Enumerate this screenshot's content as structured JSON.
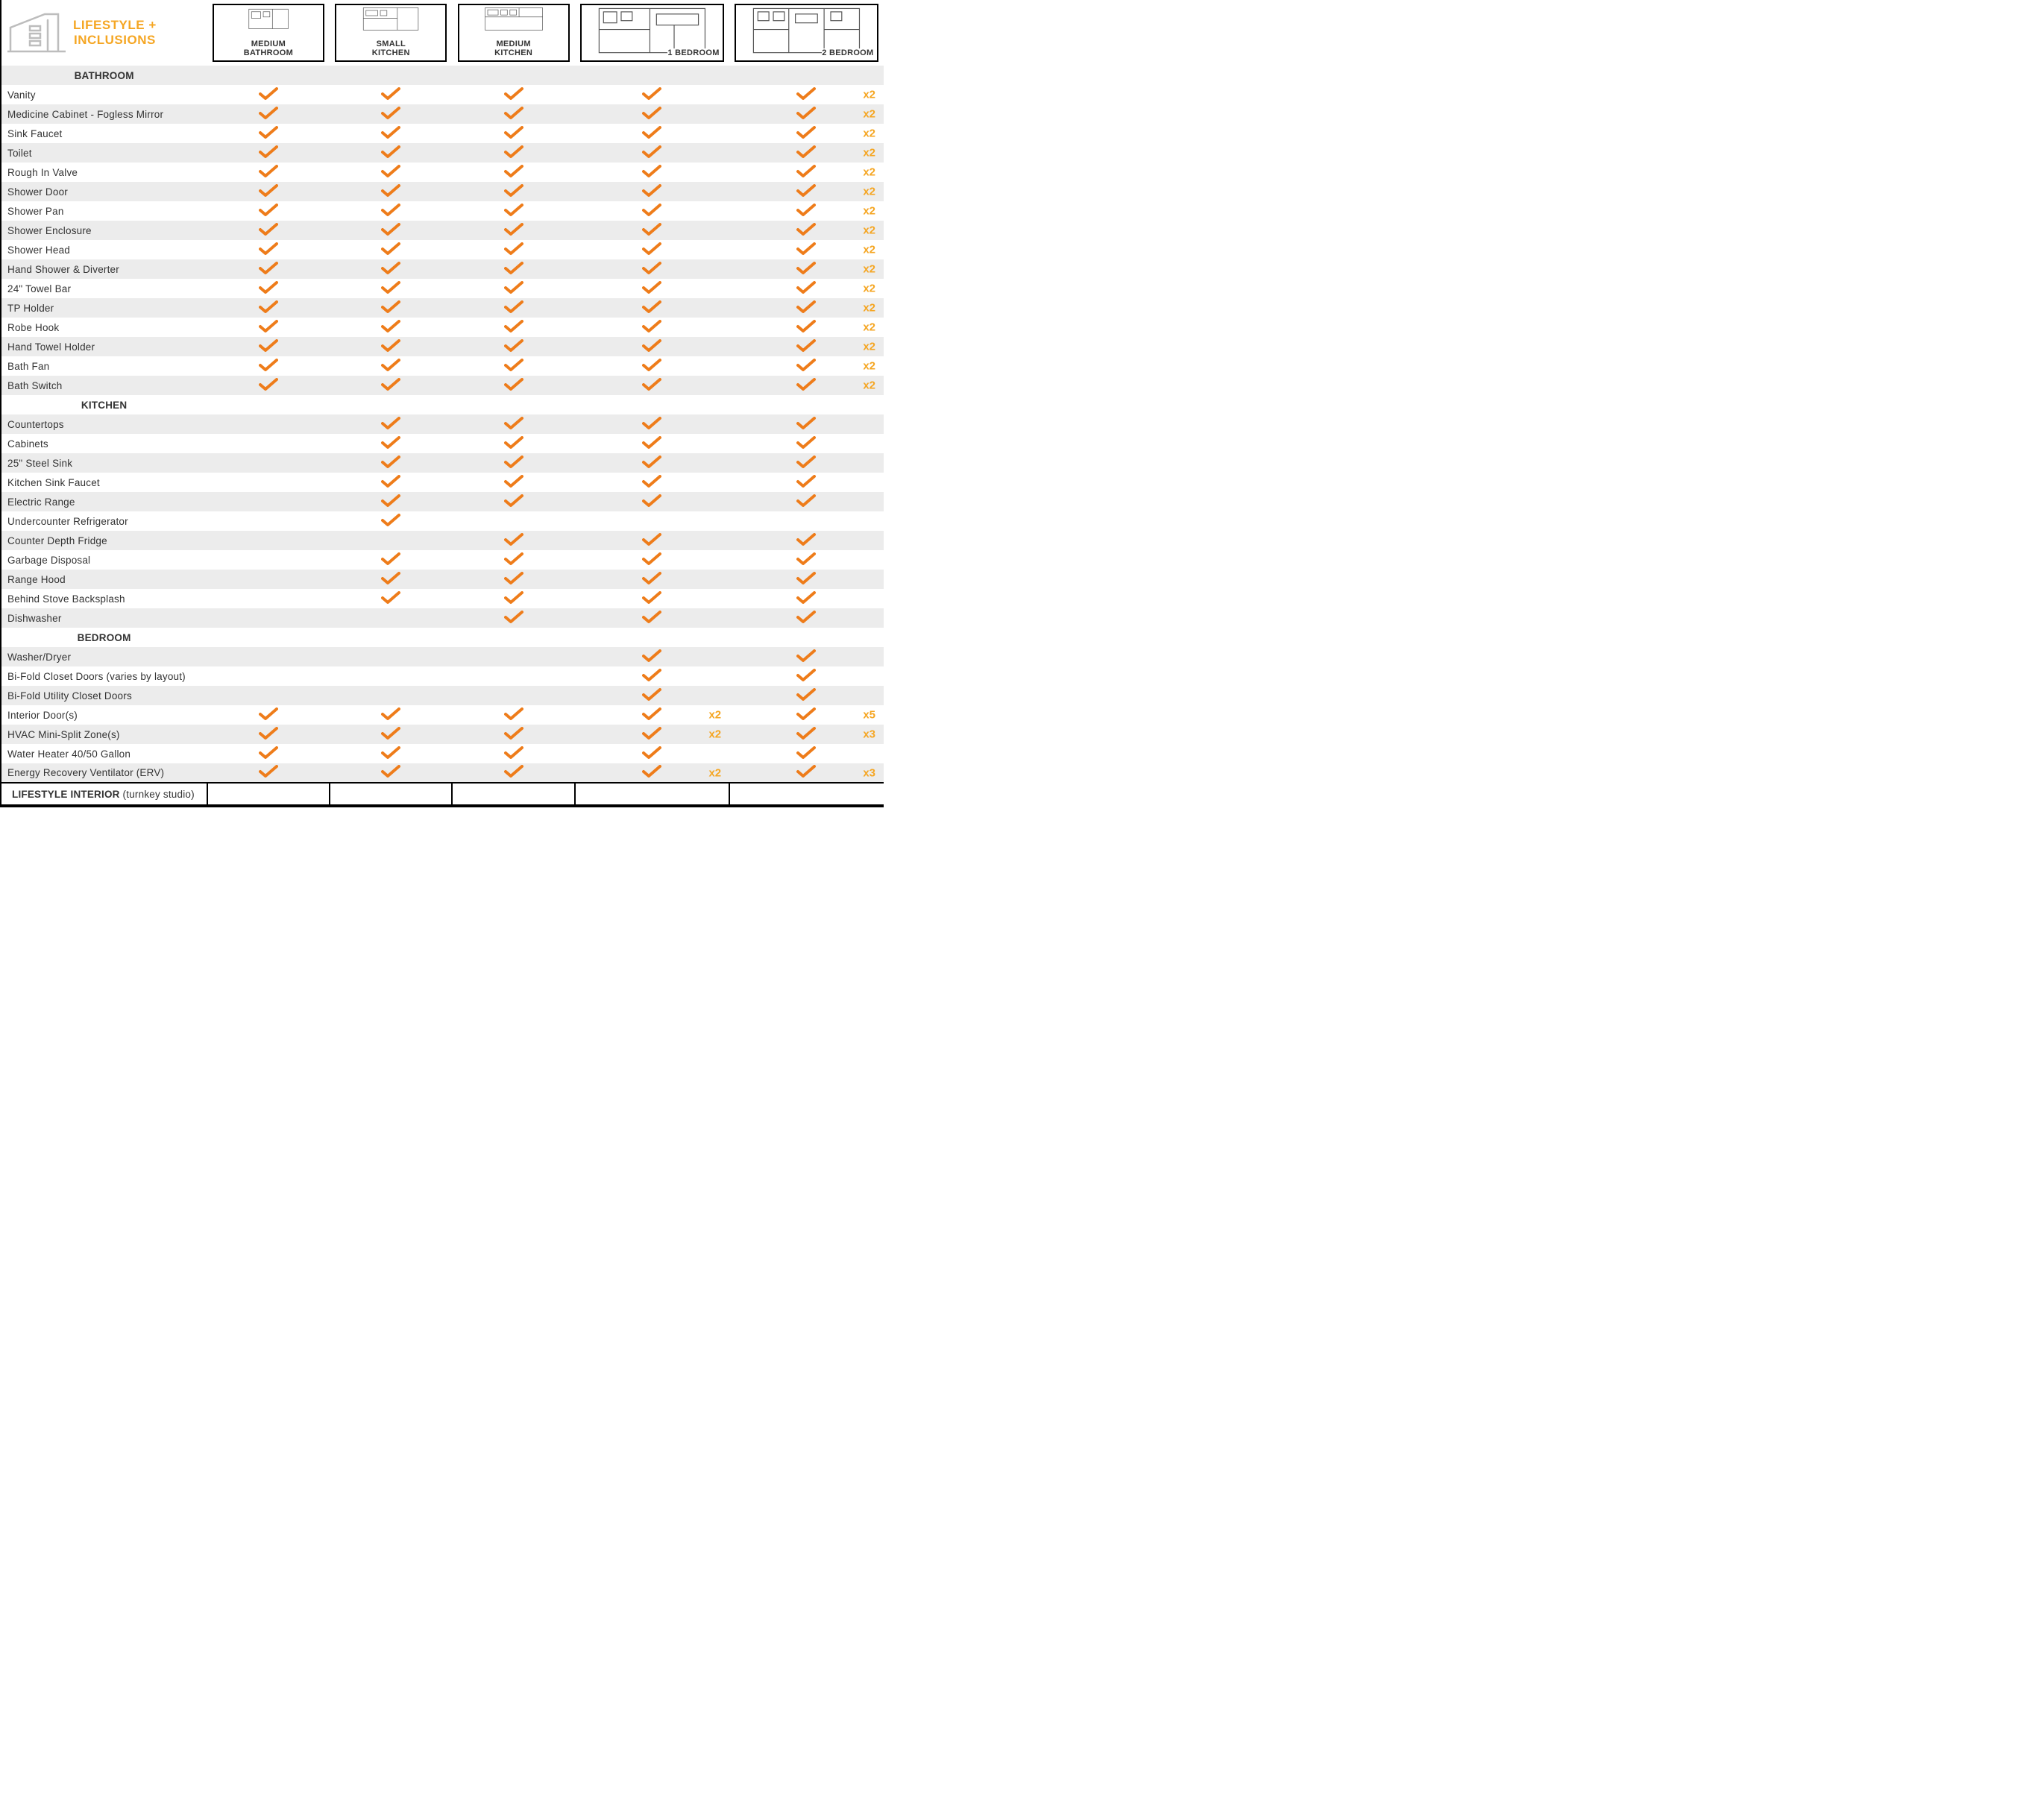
{
  "colors": {
    "accent": "#ee7c1a",
    "brand": "#f5a623",
    "zebra": "#ececec",
    "border": "#000000",
    "text": "#333333"
  },
  "brand": {
    "line1": "LIFESTYLE +",
    "line2": "INCLUSIONS"
  },
  "columns": [
    {
      "id": "medium_bathroom",
      "label_l1": "MEDIUM",
      "label_l2": "BATHROOM",
      "wide": false
    },
    {
      "id": "small_kitchen",
      "label_l1": "SMALL",
      "label_l2": "KITCHEN",
      "wide": false
    },
    {
      "id": "medium_kitchen",
      "label_l1": "MEDIUM",
      "label_l2": "KITCHEN",
      "wide": false
    },
    {
      "id": "one_bedroom",
      "label_l1": "",
      "label_l2": "1 BEDROOM",
      "wide": true
    },
    {
      "id": "two_bedroom",
      "label_l1": "",
      "label_l2": "2 BEDROOM",
      "wide": true
    }
  ],
  "sections": [
    {
      "title": "BATHROOM",
      "rows": [
        {
          "label": "Vanity",
          "cells": [
            "c",
            "c",
            "c",
            "c",
            {
              "c": true,
              "q": "x2"
            }
          ]
        },
        {
          "label": "Medicine Cabinet - Fogless Mirror",
          "cells": [
            "c",
            "c",
            "c",
            "c",
            {
              "c": true,
              "q": "x2"
            }
          ]
        },
        {
          "label": "Sink Faucet",
          "cells": [
            "c",
            "c",
            "c",
            "c",
            {
              "c": true,
              "q": "x2"
            }
          ]
        },
        {
          "label": "Toilet",
          "cells": [
            "c",
            "c",
            "c",
            "c",
            {
              "c": true,
              "q": "x2"
            }
          ]
        },
        {
          "label": "Rough In Valve",
          "cells": [
            "c",
            "c",
            "c",
            "c",
            {
              "c": true,
              "q": "x2"
            }
          ]
        },
        {
          "label": "Shower Door",
          "cells": [
            "c",
            "c",
            "c",
            "c",
            {
              "c": true,
              "q": "x2"
            }
          ]
        },
        {
          "label": "Shower Pan",
          "cells": [
            "c",
            "c",
            "c",
            "c",
            {
              "c": true,
              "q": "x2"
            }
          ]
        },
        {
          "label": "Shower Enclosure",
          "cells": [
            "c",
            "c",
            "c",
            "c",
            {
              "c": true,
              "q": "x2"
            }
          ]
        },
        {
          "label": "Shower Head",
          "cells": [
            "c",
            "c",
            "c",
            "c",
            {
              "c": true,
              "q": "x2"
            }
          ]
        },
        {
          "label": "Hand Shower & Diverter",
          "cells": [
            "c",
            "c",
            "c",
            "c",
            {
              "c": true,
              "q": "x2"
            }
          ]
        },
        {
          "label": "24\" Towel Bar",
          "cells": [
            "c",
            "c",
            "c",
            "c",
            {
              "c": true,
              "q": "x2"
            }
          ]
        },
        {
          "label": "TP Holder",
          "cells": [
            "c",
            "c",
            "c",
            "c",
            {
              "c": true,
              "q": "x2"
            }
          ]
        },
        {
          "label": "Robe Hook",
          "cells": [
            "c",
            "c",
            "c",
            "c",
            {
              "c": true,
              "q": "x2"
            }
          ]
        },
        {
          "label": "Hand Towel Holder",
          "cells": [
            "c",
            "c",
            "c",
            "c",
            {
              "c": true,
              "q": "x2"
            }
          ]
        },
        {
          "label": "Bath Fan",
          "cells": [
            "c",
            "c",
            "c",
            "c",
            {
              "c": true,
              "q": "x2"
            }
          ]
        },
        {
          "label": "Bath Switch",
          "cells": [
            "c",
            "c",
            "c",
            "c",
            {
              "c": true,
              "q": "x2"
            }
          ]
        }
      ]
    },
    {
      "title": "KITCHEN",
      "rows": [
        {
          "label": "Countertops",
          "cells": [
            "",
            "c",
            "c",
            "c",
            "c"
          ]
        },
        {
          "label": "Cabinets",
          "cells": [
            "",
            "c",
            "c",
            "c",
            "c"
          ]
        },
        {
          "label": "25\" Steel Sink",
          "cells": [
            "",
            "c",
            "c",
            "c",
            "c"
          ]
        },
        {
          "label": "Kitchen Sink Faucet",
          "cells": [
            "",
            "c",
            "c",
            "c",
            "c"
          ]
        },
        {
          "label": "Electric Range",
          "cells": [
            "",
            "c",
            "c",
            "c",
            "c"
          ]
        },
        {
          "label": "Undercounter Refrigerator",
          "cells": [
            "",
            "c",
            "",
            "",
            ""
          ]
        },
        {
          "label": "Counter Depth Fridge",
          "cells": [
            "",
            "",
            "c",
            "c",
            "c"
          ]
        },
        {
          "label": "Garbage Disposal",
          "cells": [
            "",
            "c",
            "c",
            "c",
            "c"
          ]
        },
        {
          "label": "Range Hood",
          "cells": [
            "",
            "c",
            "c",
            "c",
            "c"
          ]
        },
        {
          "label": "Behind Stove Backsplash",
          "cells": [
            "",
            "c",
            "c",
            "c",
            "c"
          ]
        },
        {
          "label": "Dishwasher",
          "cells": [
            "",
            "",
            "c",
            "c",
            "c"
          ]
        }
      ]
    },
    {
      "title": "BEDROOM",
      "rows": [
        {
          "label": "Washer/Dryer",
          "cells": [
            "",
            "",
            "",
            "c",
            "c"
          ]
        },
        {
          "label": "Bi-Fold Closet Doors (varies by layout)",
          "cells": [
            "",
            "",
            "",
            "c",
            "c"
          ]
        },
        {
          "label": "Bi-Fold Utility Closet Doors",
          "cells": [
            "",
            "",
            "",
            "c",
            "c"
          ]
        },
        {
          "label": "Interior Door(s)",
          "cells": [
            "c",
            "c",
            "c",
            {
              "c": true,
              "q": "x2"
            },
            {
              "c": true,
              "q": "x5"
            }
          ]
        },
        {
          "label": "HVAC Mini-Split Zone(s)",
          "cells": [
            "c",
            "c",
            "c",
            {
              "c": true,
              "q": "x2"
            },
            {
              "c": true,
              "q": "x3"
            }
          ]
        },
        {
          "label": "Water Heater 40/50 Gallon",
          "cells": [
            "c",
            "c",
            "c",
            "c",
            "c"
          ]
        },
        {
          "label": "Energy Recovery Ventilator (ERV)",
          "cells": [
            "c",
            "c",
            "c",
            {
              "c": true,
              "q": "x2"
            },
            {
              "c": true,
              "q": "x3"
            }
          ]
        }
      ]
    }
  ],
  "footer": {
    "label_bold": "LIFESTYLE INTERIOR",
    "label_paren": " (turnkey studio)"
  }
}
